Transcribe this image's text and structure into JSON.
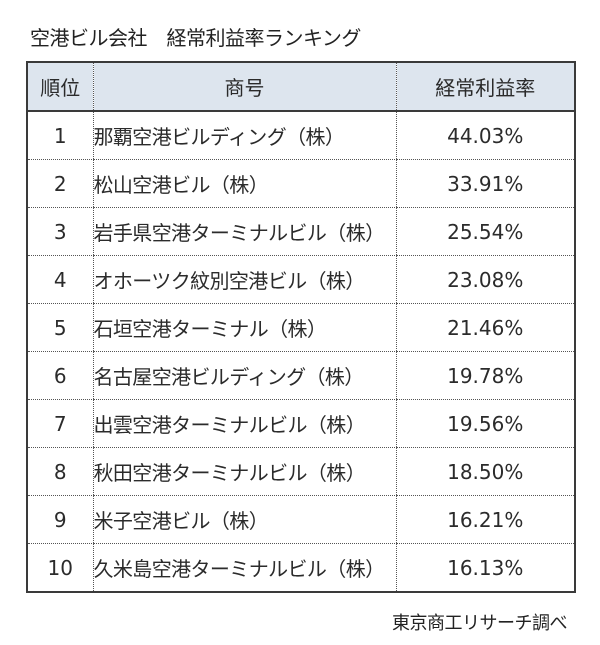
{
  "title": "空港ビル会社　経常利益率ランキング",
  "table": {
    "headers": {
      "rank": "順位",
      "name": "商号",
      "rate": "経常利益率"
    },
    "rows": [
      {
        "rank": "1",
        "name": "那覇空港ビルディング（株）",
        "rate": "44.03%"
      },
      {
        "rank": "2",
        "name": "松山空港ビル（株）",
        "rate": "33.91%"
      },
      {
        "rank": "3",
        "name": "岩手県空港ターミナルビル（株）",
        "rate": "25.54%"
      },
      {
        "rank": "4",
        "name": "オホーツク紋別空港ビル（株）",
        "rate": "23.08%"
      },
      {
        "rank": "5",
        "name": "石垣空港ターミナル（株）",
        "rate": "21.46%"
      },
      {
        "rank": "6",
        "name": "名古屋空港ビルディング（株）",
        "rate": "19.78%"
      },
      {
        "rank": "7",
        "name": "出雲空港ターミナルビル（株）",
        "rate": "19.56%"
      },
      {
        "rank": "8",
        "name": "秋田空港ターミナルビル（株）",
        "rate": "18.50%"
      },
      {
        "rank": "9",
        "name": "米子空港ビル（株）",
        "rate": "16.21%"
      },
      {
        "rank": "10",
        "name": "久米島空港ターミナルビル（株）",
        "rate": "16.13%"
      }
    ]
  },
  "source": "東京商工リサーチ調べ",
  "colors": {
    "header_bg": "#dde5ee",
    "border": "#3a3a3a",
    "text": "#2b2b2b"
  }
}
